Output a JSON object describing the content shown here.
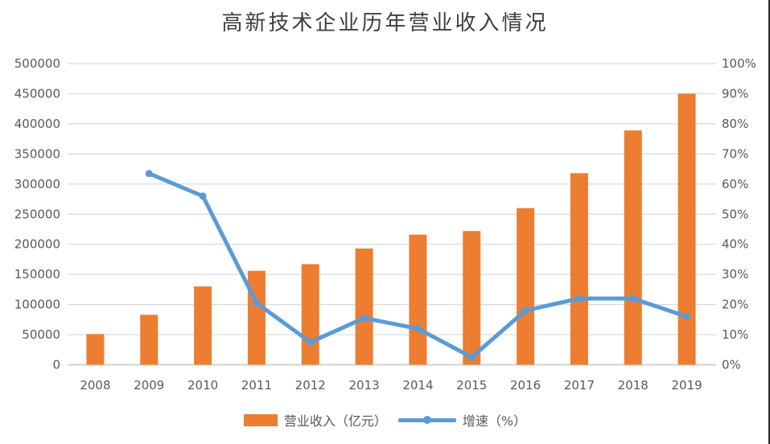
{
  "title": "高新技术企业历年营业收入情况",
  "legend": {
    "revenue_label": "营业收入（亿元）",
    "growth_label": "增速（%）"
  },
  "colors": {
    "bar": "#ED7D31",
    "line": "#5B9BD5",
    "gridline": "#D9D9D9",
    "axis_line": "#D2D2D2",
    "axis_text": "#595959",
    "title_text": "#3F3F3F",
    "edge_border": "#262626"
  },
  "chart_data": {
    "type": "bar",
    "subtype": "combo-bar-line-dual-axis",
    "title": "高新技术企业历年营业收入情况",
    "categories": [
      "2008",
      "2009",
      "2010",
      "2011",
      "2012",
      "2013",
      "2014",
      "2015",
      "2016",
      "2017",
      "2018",
      "2019"
    ],
    "series": [
      {
        "name": "营业收入（亿元）",
        "type": "bar",
        "axis": "left",
        "color": "#ED7D31",
        "values": [
          51000,
          83000,
          130000,
          156000,
          167000,
          193000,
          216000,
          222000,
          260000,
          318000,
          389000,
          450000
        ]
      },
      {
        "name": "增速（%）",
        "type": "line",
        "axis": "right",
        "color": "#5B9BD5",
        "values": [
          null,
          63.5,
          56,
          20.5,
          7.5,
          15.5,
          12,
          2.5,
          18,
          22,
          22,
          16
        ]
      }
    ],
    "left_axis": {
      "min": 0,
      "max": 500000,
      "step": 50000,
      "ticks": [
        "500000",
        "450000",
        "400000",
        "350000",
        "300000",
        "250000",
        "200000",
        "150000",
        "100000",
        "50000",
        "0"
      ]
    },
    "right_axis": {
      "min": 0,
      "max": 100,
      "step": 10,
      "ticks": [
        "100%",
        "90%",
        "80%",
        "70%",
        "60%",
        "50%",
        "40%",
        "30%",
        "20%",
        "10%",
        "0%"
      ]
    },
    "grid": true,
    "legend_position": "bottom"
  }
}
